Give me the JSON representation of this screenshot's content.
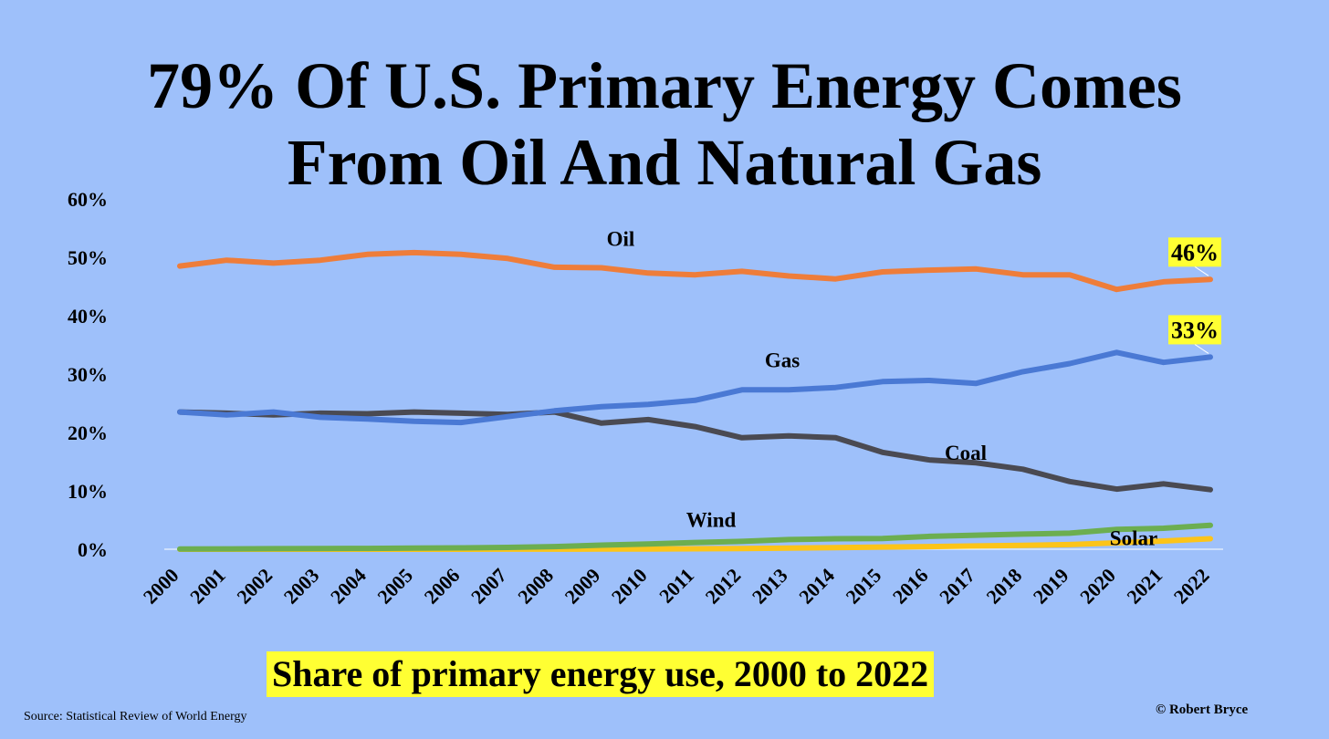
{
  "page": {
    "title_line1": "79% Of U.S. Primary Energy Comes",
    "title_line2": "From Oil And Natural Gas",
    "subtitle": "Share of primary energy use, 2000 to 2022",
    "source": "Source: Statistical Review of World Energy",
    "credit": "© Robert Bryce",
    "background": "#9ec0fa",
    "highlight": "#ffff33"
  },
  "chart_data": {
    "type": "line",
    "x": [
      "2000",
      "2001",
      "2002",
      "2003",
      "2004",
      "2005",
      "2006",
      "2007",
      "2008",
      "2009",
      "2010",
      "2011",
      "2012",
      "2013",
      "2014",
      "2015",
      "2016",
      "2017",
      "2018",
      "2019",
      "2020",
      "2021",
      "2022"
    ],
    "ylim": [
      0,
      60
    ],
    "yticks": [
      "0%",
      "10%",
      "20%",
      "30%",
      "40%",
      "50%",
      "60%"
    ],
    "ytick_values": [
      0,
      10,
      20,
      30,
      40,
      50,
      60
    ],
    "grid": false,
    "series": [
      {
        "name": "Oil",
        "color": "#ee7d3a",
        "values": [
          48.5,
          49.5,
          49,
          49.5,
          50.5,
          50.8,
          50.5,
          49.8,
          48.3,
          48.2,
          47.3,
          47,
          47.6,
          46.8,
          46.3,
          47.5,
          47.8,
          48,
          47,
          47,
          44.5,
          45.8,
          46.2
        ]
      },
      {
        "name": "Gas",
        "color": "#4a79d4",
        "values": [
          23.5,
          23,
          23.5,
          22.6,
          22.3,
          21.9,
          21.7,
          22.7,
          23.7,
          24.4,
          24.8,
          25.5,
          27.3,
          27.3,
          27.7,
          28.7,
          28.9,
          28.4,
          30.4,
          31.8,
          33.7,
          32,
          32.9
        ]
      },
      {
        "name": "Coal",
        "color": "#4a4a52",
        "values": [
          23.5,
          23.3,
          23,
          23.3,
          23.2,
          23.5,
          23.3,
          23.1,
          23.5,
          21.6,
          22.2,
          21,
          19.1,
          19.4,
          19.1,
          16.6,
          15.3,
          14.8,
          13.7,
          11.6,
          10.3,
          11.2,
          10.2
        ]
      },
      {
        "name": "Wind",
        "color": "#6cae50",
        "values": [
          0.05,
          0.07,
          0.1,
          0.12,
          0.14,
          0.18,
          0.24,
          0.32,
          0.45,
          0.7,
          0.9,
          1.15,
          1.35,
          1.65,
          1.8,
          1.85,
          2.2,
          2.4,
          2.6,
          2.75,
          3.4,
          3.6,
          4.1
        ]
      },
      {
        "name": "Solar",
        "color": "#fcc419",
        "values": [
          0,
          0,
          0,
          0,
          0,
          0,
          0,
          0.01,
          0.02,
          0.03,
          0.05,
          0.08,
          0.13,
          0.2,
          0.28,
          0.37,
          0.46,
          0.56,
          0.67,
          0.8,
          1.1,
          1.4,
          1.8
        ]
      }
    ],
    "annotations": [
      {
        "series": "Oil",
        "text": "46%",
        "highlight": "#ffff33"
      },
      {
        "series": "Gas",
        "text": "33%",
        "highlight": "#ffff33"
      }
    ]
  }
}
